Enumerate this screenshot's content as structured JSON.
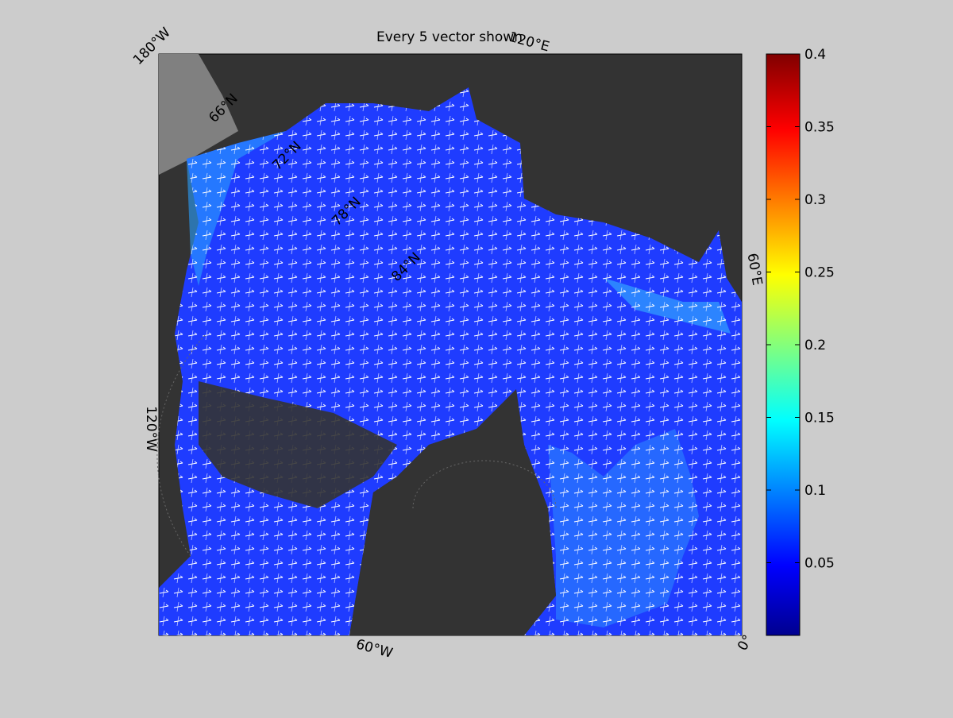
{
  "map": {
    "title": "Every 5 vector shown",
    "longitude_labels": [
      "180°W",
      "120°E",
      "60°E",
      "0°",
      "60°W",
      "120°W"
    ],
    "latitude_labels": [
      "66°N",
      "72°N",
      "78°N",
      "84°N"
    ],
    "colorbar": {
      "lim": [
        0,
        0.4
      ],
      "ticks": [
        0.05,
        0.1,
        0.15,
        0.2,
        0.25,
        0.3,
        0.35,
        0.4
      ]
    }
  }
}
